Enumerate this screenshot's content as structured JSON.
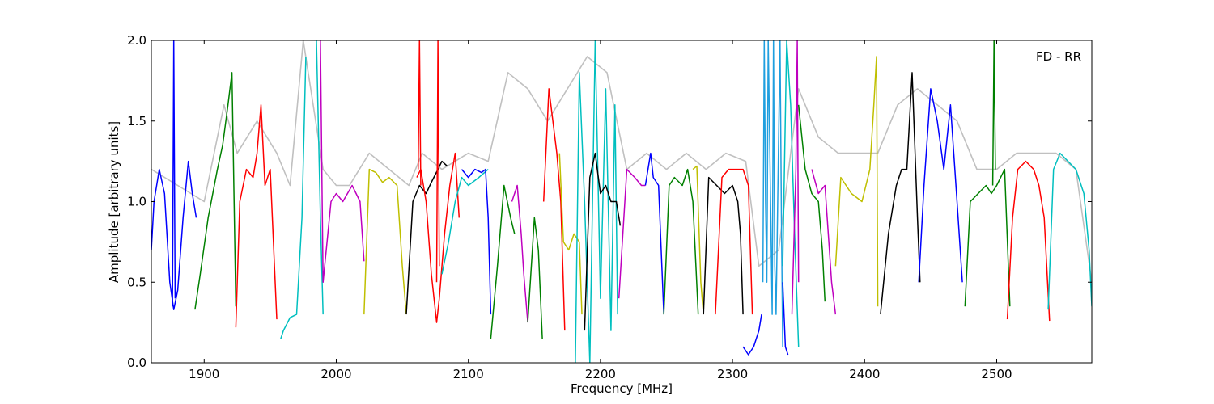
{
  "chart_data": {
    "type": "line",
    "title": "",
    "annotation": "FD - RR",
    "xlabel": "Frequency [MHz]",
    "ylabel": "Amplitude [arbitrary units]",
    "xlim": [
      1860,
      2572
    ],
    "ylim": [
      0.0,
      2.0
    ],
    "xticks": [
      1900,
      2000,
      2100,
      2200,
      2300,
      2400,
      2500
    ],
    "yticks": [
      "0.0",
      "0.5",
      "1.0",
      "1.5",
      "2.0"
    ],
    "grid": false,
    "legend": "none",
    "colors": {
      "background_trace": "#c0c0c0",
      "blue": "#0000ff",
      "green": "#008000",
      "red": "#ff0000",
      "cyan": "#00bfbf",
      "magenta": "#bf00bf",
      "olive": "#bfbf00",
      "black": "#000000",
      "sky": "#1f9fdf"
    },
    "series": [
      {
        "color": "background_trace",
        "x": [
          1860,
          1880,
          1900,
          1915,
          1925,
          1940,
          1955,
          1965,
          1975,
          1990,
          2000,
          2010,
          2025,
          2040,
          2055,
          2065,
          2080,
          2100,
          2115,
          2130,
          2145,
          2160,
          2175,
          2190,
          2205,
          2220,
          2235,
          2250,
          2265,
          2280,
          2295,
          2310,
          2320,
          2335,
          2350,
          2365,
          2380,
          2395,
          2410,
          2425,
          2440,
          2455,
          2470,
          2485,
          2500,
          2515,
          2530,
          2545,
          2560,
          2572
        ],
        "y": [
          1.2,
          1.1,
          1.0,
          1.6,
          1.3,
          1.5,
          1.3,
          1.1,
          2.0,
          1.2,
          1.1,
          1.1,
          1.3,
          1.2,
          1.1,
          1.3,
          1.2,
          1.3,
          1.25,
          1.8,
          1.7,
          1.5,
          1.7,
          1.9,
          1.8,
          1.2,
          1.3,
          1.2,
          1.3,
          1.2,
          1.3,
          1.25,
          0.6,
          0.7,
          1.7,
          1.4,
          1.3,
          1.3,
          1.3,
          1.6,
          1.7,
          1.6,
          1.5,
          1.2,
          1.2,
          1.3,
          1.3,
          1.3,
          1.2,
          0.5
        ]
      },
      {
        "color": "blue",
        "x": [
          1860,
          1862,
          1866,
          1870,
          1874,
          1877,
          1880,
          1884,
          1888,
          1891,
          1894
        ],
        "y": [
          0.7,
          1.0,
          1.2,
          1.05,
          0.5,
          0.33,
          0.45,
          0.9,
          1.25,
          1.05,
          0.9
        ]
      },
      {
        "color": "blue",
        "x": [
          1876,
          1877,
          1878
        ],
        "y": [
          0.35,
          2.0,
          0.4
        ]
      },
      {
        "color": "green",
        "x": [
          1893,
          1897,
          1903,
          1910,
          1914,
          1918,
          1921,
          1924
        ],
        "y": [
          0.33,
          0.55,
          0.9,
          1.2,
          1.35,
          1.6,
          1.8,
          0.35
        ]
      },
      {
        "color": "red",
        "x": [
          1924,
          1927,
          1932,
          1937,
          1940,
          1943,
          1946,
          1950,
          1955
        ],
        "y": [
          0.22,
          1.0,
          1.2,
          1.15,
          1.3,
          1.6,
          1.1,
          1.2,
          0.27
        ]
      },
      {
        "color": "cyan",
        "x": [
          1958,
          1960,
          1965,
          1970,
          1974,
          1977
        ],
        "y": [
          0.15,
          0.2,
          0.28,
          0.3,
          0.9,
          1.9
        ]
      },
      {
        "color": "cyan",
        "x": [
          1985,
          1988,
          1990
        ],
        "y": [
          2.0,
          0.9,
          0.3
        ]
      },
      {
        "color": "magenta",
        "x": [
          1988,
          1990,
          1996,
          2000,
          2005,
          2012,
          2018,
          2021
        ],
        "y": [
          2.0,
          0.5,
          1.0,
          1.05,
          1.0,
          1.1,
          1.0,
          0.63
        ]
      },
      {
        "color": "olive",
        "x": [
          2021,
          2025,
          2030,
          2035,
          2040,
          2046,
          2050,
          2053
        ],
        "y": [
          0.3,
          1.2,
          1.18,
          1.12,
          1.15,
          1.1,
          0.6,
          0.3
        ]
      },
      {
        "color": "black",
        "x": [
          2053,
          2058,
          2063,
          2068,
          2072,
          2077,
          2080,
          2084
        ],
        "y": [
          0.3,
          1.0,
          1.1,
          1.05,
          1.12,
          1.2,
          1.25,
          1.22
        ]
      },
      {
        "color": "red",
        "x": [
          2061,
          2064,
          2068,
          2072,
          2076,
          2078,
          2082,
          2086,
          2090,
          2093
        ],
        "y": [
          1.15,
          1.2,
          1.0,
          0.55,
          0.25,
          0.4,
          0.8,
          1.1,
          1.3,
          0.9
        ]
      },
      {
        "color": "red",
        "x": [
          2062,
          2063,
          2064
        ],
        "y": [
          1.2,
          2.0,
          1.1
        ]
      },
      {
        "color": "red",
        "x": [
          2076,
          2077,
          2078
        ],
        "y": [
          0.5,
          2.0,
          0.6
        ]
      },
      {
        "color": "cyan",
        "x": [
          2080,
          2085,
          2090,
          2095,
          2100,
          2108,
          2115
        ],
        "y": [
          0.55,
          0.75,
          1.0,
          1.15,
          1.1,
          1.15,
          1.2
        ]
      },
      {
        "color": "blue",
        "x": [
          2095,
          2100,
          2105,
          2110,
          2113,
          2115,
          2117
        ],
        "y": [
          1.2,
          1.15,
          1.2,
          1.18,
          1.2,
          0.9,
          0.3
        ]
      },
      {
        "color": "green",
        "x": [
          2117,
          2122,
          2127,
          2132,
          2135
        ],
        "y": [
          0.15,
          0.6,
          1.1,
          0.9,
          0.8
        ]
      },
      {
        "color": "magenta",
        "x": [
          2133,
          2137,
          2140,
          2142,
          2145
        ],
        "y": [
          1.0,
          1.1,
          0.8,
          0.55,
          0.25
        ]
      },
      {
        "color": "green",
        "x": [
          2145,
          2150,
          2153,
          2156
        ],
        "y": [
          0.25,
          0.9,
          0.7,
          0.15
        ]
      },
      {
        "color": "red",
        "x": [
          2157,
          2161,
          2164,
          2167,
          2170,
          2173
        ],
        "y": [
          1.0,
          1.7,
          1.5,
          1.3,
          1.0,
          0.2
        ]
      },
      {
        "color": "olive",
        "x": [
          2169,
          2172,
          2176,
          2180,
          2184,
          2186
        ],
        "y": [
          1.3,
          0.75,
          0.7,
          0.8,
          0.75,
          0.3
        ]
      },
      {
        "color": "cyan",
        "x": [
          2181,
          2184,
          2188,
          2192,
          2196,
          2200,
          2204,
          2208,
          2211,
          2213
        ],
        "y": [
          0.0,
          1.8,
          1.0,
          0.0,
          2.0,
          0.4,
          1.7,
          0.2,
          1.6,
          0.3
        ]
      },
      {
        "color": "black",
        "x": [
          2188,
          2192,
          2196,
          2200,
          2204,
          2208,
          2212,
          2215
        ],
        "y": [
          0.2,
          1.15,
          1.3,
          1.05,
          1.1,
          1.0,
          1.0,
          0.85
        ]
      },
      {
        "color": "magenta",
        "x": [
          2214,
          2220,
          2226,
          2231,
          2234
        ],
        "y": [
          0.4,
          1.2,
          1.15,
          1.1,
          1.1
        ]
      },
      {
        "color": "blue",
        "x": [
          2234,
          2238,
          2240,
          2244,
          2248
        ],
        "y": [
          1.1,
          1.3,
          1.15,
          1.1,
          0.3
        ]
      },
      {
        "color": "green",
        "x": [
          2248,
          2252,
          2256,
          2262,
          2266,
          2270,
          2274
        ],
        "y": [
          0.3,
          1.1,
          1.15,
          1.1,
          1.2,
          1.0,
          0.3
        ]
      },
      {
        "color": "olive",
        "x": [
          2270,
          2273,
          2276,
          2278
        ],
        "y": [
          1.2,
          1.22,
          0.5,
          0.3
        ]
      },
      {
        "color": "black",
        "x": [
          2278,
          2282,
          2288,
          2294,
          2300,
          2304,
          2306,
          2308
        ],
        "y": [
          0.3,
          1.15,
          1.1,
          1.05,
          1.1,
          1.0,
          0.8,
          0.3
        ]
      },
      {
        "color": "red",
        "x": [
          2287,
          2292,
          2297,
          2303,
          2308,
          2312,
          2315
        ],
        "y": [
          0.3,
          1.15,
          1.2,
          1.2,
          1.2,
          1.1,
          0.3
        ]
      },
      {
        "color": "blue",
        "x": [
          2308,
          2312,
          2316,
          2320,
          2322
        ],
        "y": [
          0.1,
          0.05,
          0.1,
          0.2,
          0.3
        ]
      },
      {
        "color": "sky",
        "x": [
          2323,
          2324,
          2325,
          2326,
          2327,
          2330,
          2331,
          2332,
          2333,
          2336,
          2337,
          2338
        ],
        "y": [
          0.5,
          2.0,
          1.0,
          0.5,
          2.0,
          0.3,
          2.0,
          0.6,
          0.3,
          2.0,
          0.9,
          0.1
        ]
      },
      {
        "color": "cyan",
        "x": [
          2338,
          2341,
          2344,
          2347,
          2350
        ],
        "y": [
          0.6,
          2.0,
          1.6,
          0.8,
          0.1
        ]
      },
      {
        "color": "blue",
        "x": [
          2338,
          2340,
          2342
        ],
        "y": [
          0.5,
          0.1,
          0.05
        ]
      },
      {
        "color": "magenta",
        "x": [
          2345,
          2348,
          2349,
          2350
        ],
        "y": [
          0.3,
          1.2,
          2.0,
          0.5
        ]
      },
      {
        "color": "green",
        "x": [
          2350,
          2355,
          2360,
          2365,
          2368,
          2370
        ],
        "y": [
          1.6,
          1.2,
          1.05,
          1.0,
          0.7,
          0.38
        ]
      },
      {
        "color": "magenta",
        "x": [
          2360,
          2365,
          2370,
          2375,
          2378
        ],
        "y": [
          1.2,
          1.05,
          1.1,
          0.5,
          0.3
        ]
      },
      {
        "color": "olive",
        "x": [
          2378,
          2382,
          2390,
          2398,
          2404,
          2407,
          2409,
          2410
        ],
        "y": [
          0.6,
          1.15,
          1.05,
          1.0,
          1.2,
          1.6,
          1.9,
          0.35
        ]
      },
      {
        "color": "black",
        "x": [
          2412,
          2418,
          2424,
          2428,
          2432,
          2436,
          2440,
          2442
        ],
        "y": [
          0.3,
          0.8,
          1.1,
          1.2,
          1.2,
          1.8,
          0.9,
          0.5
        ]
      },
      {
        "color": "blue",
        "x": [
          2441,
          2445,
          2450,
          2455,
          2460,
          2465,
          2470,
          2474
        ],
        "y": [
          0.5,
          1.1,
          1.7,
          1.5,
          1.2,
          1.6,
          1.0,
          0.5
        ]
      },
      {
        "color": "green",
        "x": [
          2476,
          2480,
          2486,
          2492,
          2496,
          2500,
          2506,
          2510
        ],
        "y": [
          0.35,
          1.0,
          1.05,
          1.1,
          1.05,
          1.1,
          1.2,
          0.35
        ]
      },
      {
        "color": "green",
        "x": [
          2497,
          2498,
          2499
        ],
        "y": [
          1.1,
          2.0,
          1.2
        ]
      },
      {
        "color": "red",
        "x": [
          2508,
          2512,
          2516,
          2522,
          2528,
          2532,
          2536,
          2540
        ],
        "y": [
          0.27,
          0.9,
          1.2,
          1.25,
          1.2,
          1.1,
          0.9,
          0.26
        ]
      },
      {
        "color": "cyan",
        "x": [
          2539,
          2543,
          2548,
          2554,
          2560,
          2566,
          2570,
          2572
        ],
        "y": [
          0.33,
          1.2,
          1.3,
          1.25,
          1.2,
          1.05,
          0.7,
          0.35
        ]
      }
    ]
  }
}
